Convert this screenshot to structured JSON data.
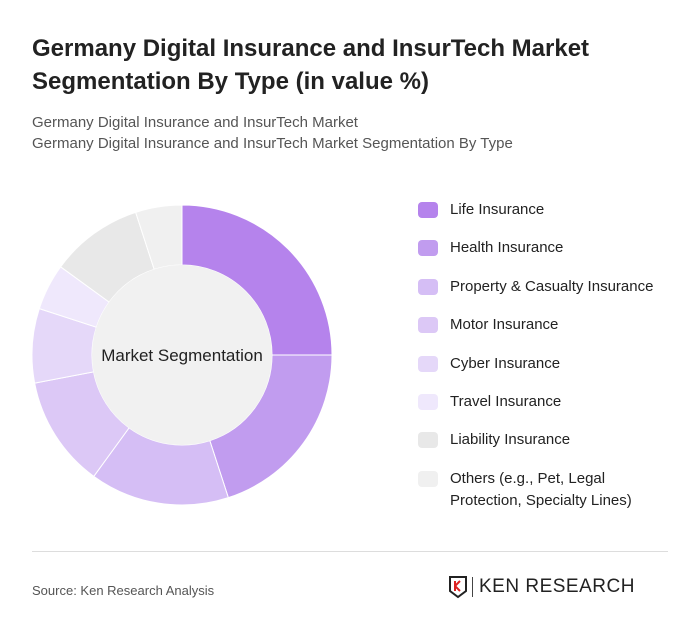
{
  "title": "Germany Digital Insurance and InsurTech Market Segmentation By Type (in value %)",
  "subtitle1": "Germany Digital Insurance and InsurTech Market",
  "subtitle2": "Germany Digital Insurance and InsurTech Market Segmentation By Type",
  "source": "Source: Ken Research Analysis",
  "logo_text": "KEN RESEARCH",
  "chart_data": {
    "type": "pie",
    "center_label": "Market Segmentation",
    "legend_position": "right",
    "categories": [
      "Life Insurance",
      "Health Insurance",
      "Property & Casualty Insurance",
      "Motor Insurance",
      "Cyber Insurance",
      "Travel Insurance",
      "Liability Insurance",
      "Others (e.g., Pet, Legal Protection, Specialty Lines)"
    ],
    "values": [
      25,
      20,
      15,
      12,
      8,
      5,
      10,
      5
    ],
    "colors": [
      "#b583ec",
      "#c19cef",
      "#d5bef5",
      "#dcc8f6",
      "#e5d8f9",
      "#efe8fc",
      "#e8e8e8",
      "#f0f0f0"
    ]
  }
}
